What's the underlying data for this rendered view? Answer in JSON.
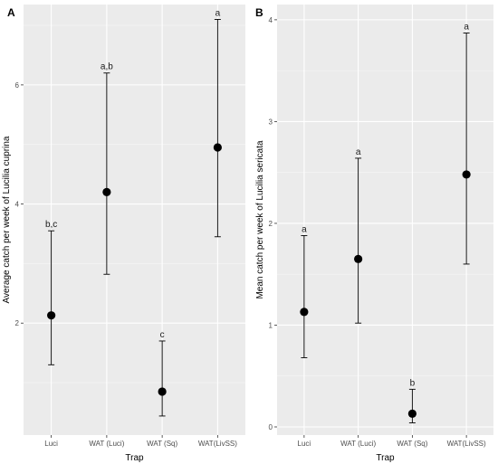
{
  "chart_data": [
    {
      "type": "scatter",
      "panel_label": "A",
      "xlabel": "Trap",
      "ylabel": "Average catch per week of Lucilia cuprina",
      "categories": [
        "Luci",
        "WAT (Luci)",
        "WAT (Sq)",
        "WAT(LivSS)"
      ],
      "values": [
        2.13,
        4.2,
        0.85,
        4.95
      ],
      "lower": [
        1.3,
        2.82,
        0.44,
        3.45
      ],
      "upper": [
        3.55,
        6.2,
        1.7,
        7.1
      ],
      "group_labels": [
        "b,c",
        "a,b",
        "c",
        "a"
      ],
      "yticks": [
        2,
        4,
        6
      ],
      "ylim": [
        0.12,
        7.35
      ],
      "grid": true,
      "error_bars": true
    },
    {
      "type": "scatter",
      "panel_label": "B",
      "xlabel": "Trap",
      "ylabel": "Mean catch per week of Lucilia sericata",
      "categories": [
        "Luci",
        "WAT (Luci)",
        "WAT (Sq)",
        "WAT(LivSS)"
      ],
      "values": [
        1.13,
        1.65,
        0.13,
        2.48
      ],
      "lower": [
        0.68,
        1.02,
        0.04,
        1.6
      ],
      "upper": [
        1.88,
        2.64,
        0.37,
        3.87
      ],
      "group_labels": [
        "a",
        "a",
        "b",
        "a"
      ],
      "yticks": [
        0,
        1,
        2,
        3,
        4
      ],
      "ylim": [
        -0.08,
        4.15
      ],
      "grid": true,
      "error_bars": true
    }
  ]
}
